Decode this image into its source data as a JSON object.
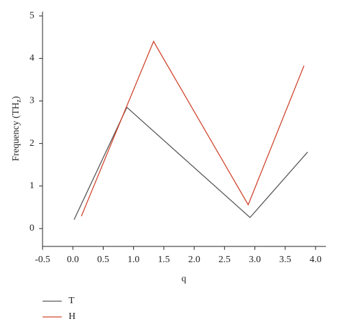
{
  "chart_data": {
    "type": "line",
    "ylabel": [
      "Frequency (TH",
      "z",
      ")"
    ],
    "xlabel": "q",
    "xlim": [
      -0.5,
      4.17
    ],
    "ylim": [
      -0.42,
      5.1
    ],
    "xticks": [
      -0.5,
      {
        "value": 0,
        "label": "0.0"
      },
      0.5,
      {
        "value": 1,
        "label": "1.0"
      },
      1.5,
      {
        "value": 2,
        "label": "2.0"
      },
      2.5,
      {
        "value": 3,
        "label": "3.0"
      },
      3.5,
      {
        "value": 4,
        "label": "4.0"
      }
    ],
    "yticks": [
      0,
      1,
      2,
      3,
      4,
      5
    ],
    "legend": "bottom-left",
    "series": [
      {
        "name": "T",
        "color": "#555555",
        "x": [
          0.02,
          0.89,
          2.92,
          3.87
        ],
        "values": [
          0.21,
          2.85,
          0.26,
          1.8
        ]
      },
      {
        "name": "H",
        "color": "#d0432b",
        "x": [
          0.14,
          0.88,
          1.33,
          2.89,
          3.81
        ],
        "values": [
          0.29,
          2.85,
          4.4,
          0.56,
          3.83
        ]
      }
    ]
  }
}
